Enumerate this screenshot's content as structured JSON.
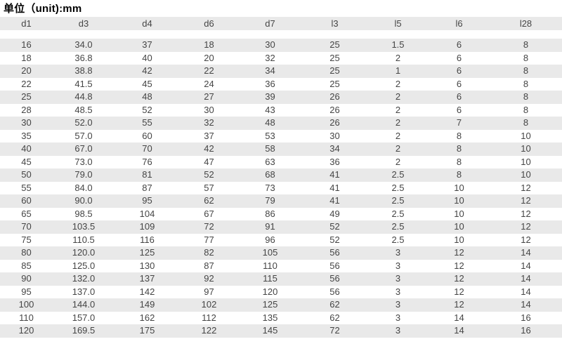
{
  "title": "单位（unit):mm",
  "colors": {
    "row_stripe": "#e9e9e9",
    "header_band": "#e9e9e9",
    "text": "#454545",
    "title_text": "#000000",
    "background": "#ffffff"
  },
  "table": {
    "headers": [
      "d1",
      "d3",
      "d4",
      "d6",
      "d7",
      "l3",
      "l5",
      "l6",
      "l28"
    ],
    "rows": [
      [
        "16",
        "34.0",
        "37",
        "18",
        "30",
        "25",
        "1.5",
        "6",
        "8"
      ],
      [
        "18",
        "36.8",
        "40",
        "20",
        "32",
        "25",
        "2",
        "6",
        "8"
      ],
      [
        "20",
        "38.8",
        "42",
        "22",
        "34",
        "25",
        "1",
        "6",
        "8"
      ],
      [
        "22",
        "41.5",
        "45",
        "24",
        "36",
        "25",
        "2",
        "6",
        "8"
      ],
      [
        "25",
        "44.8",
        "48",
        "27",
        "39",
        "26",
        "2",
        "6",
        "8"
      ],
      [
        "28",
        "48.5",
        "52",
        "30",
        "43",
        "26",
        "2",
        "6",
        "8"
      ],
      [
        "30",
        "52.0",
        "55",
        "32",
        "48",
        "26",
        "2",
        "7",
        "8"
      ],
      [
        "35",
        "57.0",
        "60",
        "37",
        "53",
        "30",
        "2",
        "8",
        "10"
      ],
      [
        "40",
        "67.0",
        "70",
        "42",
        "58",
        "34",
        "2",
        "8",
        "10"
      ],
      [
        "45",
        "73.0",
        "76",
        "47",
        "63",
        "36",
        "2",
        "8",
        "10"
      ],
      [
        "50",
        "79.0",
        "81",
        "52",
        "68",
        "41",
        "2.5",
        "8",
        "10"
      ],
      [
        "55",
        "84.0",
        "87",
        "57",
        "73",
        "41",
        "2.5",
        "10",
        "12"
      ],
      [
        "60",
        "90.0",
        "95",
        "62",
        "79",
        "41",
        "2.5",
        "10",
        "12"
      ],
      [
        "65",
        "98.5",
        "104",
        "67",
        "86",
        "49",
        "2.5",
        "10",
        "12"
      ],
      [
        "70",
        "103.5",
        "109",
        "72",
        "91",
        "52",
        "2.5",
        "10",
        "12"
      ],
      [
        "75",
        "110.5",
        "116",
        "77",
        "96",
        "52",
        "2.5",
        "10",
        "12"
      ],
      [
        "80",
        "120.0",
        "125",
        "82",
        "105",
        "56",
        "3",
        "12",
        "14"
      ],
      [
        "85",
        "125.0",
        "130",
        "87",
        "110",
        "56",
        "3",
        "12",
        "14"
      ],
      [
        "90",
        "132.0",
        "137",
        "92",
        "115",
        "56",
        "3",
        "12",
        "14"
      ],
      [
        "95",
        "137.0",
        "142",
        "97",
        "120",
        "56",
        "3",
        "12",
        "14"
      ],
      [
        "100",
        "144.0",
        "149",
        "102",
        "125",
        "62",
        "3",
        "12",
        "14"
      ],
      [
        "110",
        "157.0",
        "162",
        "112",
        "135",
        "62",
        "3",
        "14",
        "16"
      ],
      [
        "120",
        "169.5",
        "175",
        "122",
        "145",
        "72",
        "3",
        "14",
        "16"
      ]
    ]
  }
}
